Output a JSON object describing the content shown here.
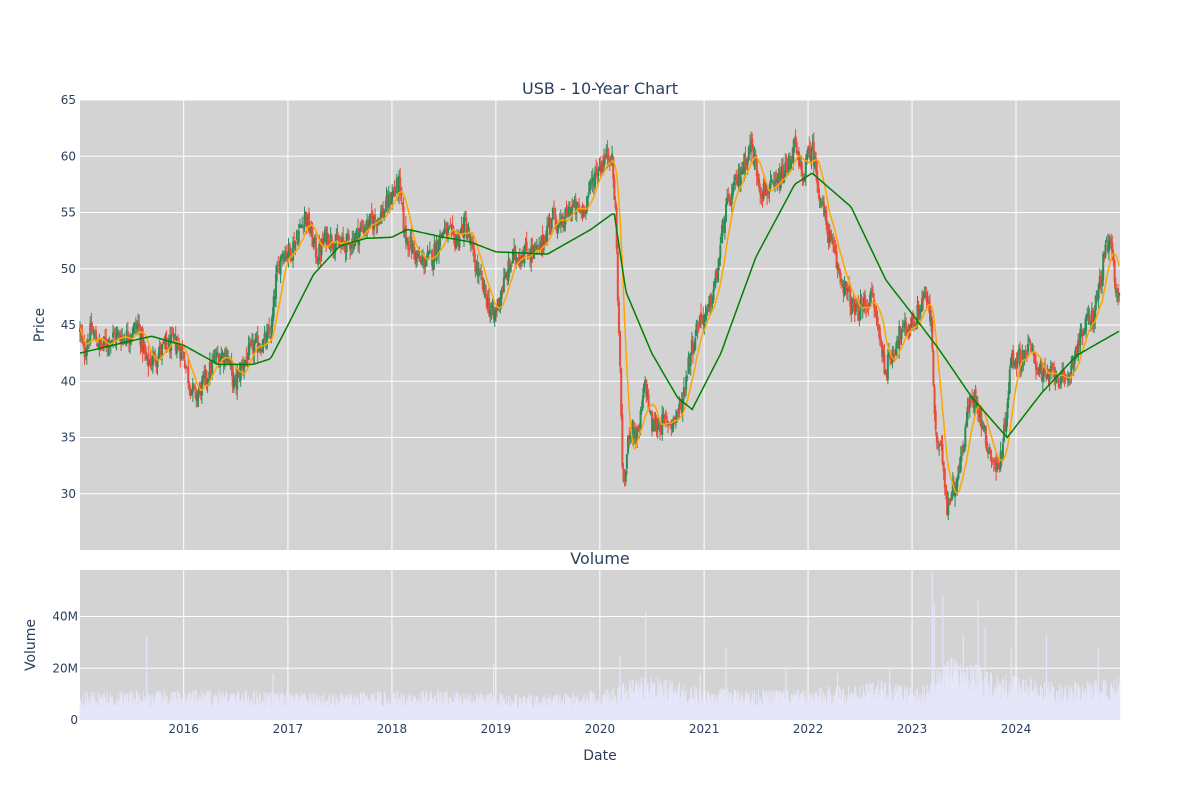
{
  "chart_data": [
    {
      "type": "candlestick",
      "title": "USB - 10-Year Chart",
      "xlabel": "",
      "ylabel": "Price",
      "ylim": [
        25,
        65
      ],
      "yticks": [
        30,
        35,
        40,
        45,
        50,
        55,
        60,
        65
      ],
      "xlim": [
        "2015-01-02",
        "2024-12-31"
      ],
      "grid": true,
      "background": "#d3d3d3",
      "candle_up_color": "#2e8b57",
      "candle_down_color": "#e74c3c",
      "price_path": {
        "dates": [
          "2015-01-02",
          "2015-01-15",
          "2015-02-10",
          "2015-03-15",
          "2015-05-01",
          "2015-06-15",
          "2015-07-25",
          "2015-08-24",
          "2015-09-15",
          "2015-10-25",
          "2015-12-01",
          "2015-12-31",
          "2016-01-20",
          "2016-02-11",
          "2016-03-15",
          "2016-04-20",
          "2016-06-01",
          "2016-06-27",
          "2016-07-25",
          "2016-09-01",
          "2016-10-15",
          "2016-11-04",
          "2016-11-20",
          "2016-12-10",
          "2017-01-10",
          "2017-02-20",
          "2017-03-01",
          "2017-04-15",
          "2017-05-15",
          "2017-07-01",
          "2017-08-15",
          "2017-09-15",
          "2017-10-15",
          "2017-12-01",
          "2018-01-10",
          "2018-01-26",
          "2018-02-15",
          "2018-03-10",
          "2018-04-10",
          "2018-05-20",
          "2018-07-01",
          "2018-08-15",
          "2018-09-15",
          "2018-10-25",
          "2018-12-24",
          "2019-01-20",
          "2019-03-01",
          "2019-04-15",
          "2019-06-01",
          "2019-07-20",
          "2019-08-15",
          "2019-09-20",
          "2019-11-01",
          "2019-12-15",
          "2020-01-10",
          "2020-02-10",
          "2020-02-25",
          "2020-03-15",
          "2020-03-23",
          "2020-04-15",
          "2020-05-15",
          "2020-06-08",
          "2020-07-01",
          "2020-09-15",
          "2020-10-15",
          "2020-11-09",
          "2020-12-15",
          "2021-01-15",
          "2021-02-15",
          "2021-03-15",
          "2021-05-01",
          "2021-06-15",
          "2021-07-20",
          "2021-09-01",
          "2021-10-20",
          "2021-11-15",
          "2021-12-10",
          "2022-01-14",
          "2022-02-15",
          "2022-03-15",
          "2022-04-15",
          "2022-05-15",
          "2022-06-15",
          "2022-08-15",
          "2022-09-30",
          "2022-11-15",
          "2023-01-15",
          "2023-02-15",
          "2023-03-10",
          "2023-03-24",
          "2023-04-20",
          "2023-05-04",
          "2023-06-15",
          "2023-07-20",
          "2023-08-15",
          "2023-09-15",
          "2023-10-25",
          "2023-11-15",
          "2023-12-15",
          "2024-01-15",
          "2024-02-15",
          "2024-04-15",
          "2024-05-15",
          "2024-06-20",
          "2024-08-01",
          "2024-09-01",
          "2024-10-01",
          "2024-11-06",
          "2024-11-25",
          "2024-12-20",
          "2024-12-31"
        ],
        "close": [
          44.5,
          42.5,
          44.5,
          43.0,
          44.0,
          44.0,
          45.0,
          41.5,
          42.0,
          43.0,
          43.5,
          42.5,
          40.0,
          38.5,
          40.0,
          42.0,
          42.5,
          39.5,
          41.5,
          43.0,
          43.5,
          44.5,
          49.0,
          51.5,
          51.5,
          54.0,
          55.0,
          51.0,
          53.0,
          52.0,
          52.5,
          53.5,
          54.0,
          55.0,
          57.0,
          57.5,
          53.0,
          52.0,
          50.5,
          51.0,
          53.5,
          52.5,
          54.0,
          50.0,
          45.5,
          48.0,
          51.0,
          51.5,
          51.5,
          55.0,
          53.5,
          55.5,
          55.0,
          58.5,
          59.5,
          60.5,
          55.0,
          38.0,
          30.0,
          36.0,
          35.0,
          40.0,
          36.0,
          36.5,
          38.0,
          42.0,
          45.5,
          46.0,
          49.5,
          55.0,
          58.0,
          61.0,
          57.0,
          57.0,
          59.0,
          61.0,
          58.0,
          61.0,
          56.0,
          53.0,
          50.0,
          48.0,
          46.0,
          47.5,
          41.0,
          44.0,
          45.5,
          48.0,
          45.0,
          35.0,
          33.0,
          29.0,
          32.0,
          38.0,
          38.5,
          35.0,
          32.0,
          34.0,
          42.0,
          42.0,
          43.0,
          40.0,
          41.0,
          39.5,
          43.0,
          45.0,
          46.0,
          51.0,
          52.5,
          48.0,
          48.0
        ]
      },
      "series": [
        {
          "name": "",
          "color": "#ffa500",
          "role": "short moving average (fast)"
        },
        {
          "name": "",
          "color": "#008000",
          "dates": [
            "2015-01-02",
            "2015-06-15",
            "2015-09-10",
            "2016-01-01",
            "2016-05-01",
            "2016-09-01",
            "2016-11-01",
            "2017-01-01",
            "2017-04-01",
            "2017-07-01",
            "2017-10-01",
            "2018-01-01",
            "2018-02-25",
            "2018-07-01",
            "2018-10-01",
            "2019-01-01",
            "2019-07-01",
            "2019-12-01",
            "2020-02-20",
            "2020-04-01",
            "2020-07-01",
            "2020-10-01",
            "2020-11-20",
            "2021-03-01",
            "2021-07-01",
            "2021-11-15",
            "2022-01-15",
            "2022-06-01",
            "2022-10-01",
            "2023-01-01",
            "2023-04-01",
            "2023-08-01",
            "2023-12-01",
            "2024-04-01",
            "2024-08-01",
            "2024-12-31"
          ],
          "values": [
            42.5,
            43.5,
            44.0,
            43.2,
            41.5,
            41.5,
            42.0,
            45.0,
            49.5,
            52.0,
            52.7,
            52.8,
            53.5,
            52.8,
            52.4,
            51.5,
            51.3,
            53.5,
            55.0,
            48.0,
            42.5,
            38.5,
            37.5,
            42.5,
            51.0,
            57.5,
            58.5,
            55.5,
            49.0,
            46.0,
            43.0,
            38.5,
            35.0,
            39.0,
            42.3,
            44.5
          ]
        }
      ]
    },
    {
      "type": "bar",
      "title": "Volume",
      "xlabel": "Date",
      "ylabel": "Volume",
      "ylim": [
        0,
        58000000
      ],
      "yticks": [
        0,
        20000000,
        40000000
      ],
      "ytick_labels": [
        "0",
        "20M",
        "40M"
      ],
      "xticks": [
        "2016",
        "2017",
        "2018",
        "2019",
        "2020",
        "2021",
        "2022",
        "2023",
        "2024"
      ],
      "bar_color": "#e6e6fa",
      "spikes": [
        {
          "date": "2015-08-24",
          "value": 33000000
        },
        {
          "date": "2016-11-10",
          "value": 18000000
        },
        {
          "date": "2018-12-24",
          "value": 22000000
        },
        {
          "date": "2020-03-12",
          "value": 25000000
        },
        {
          "date": "2020-06-10",
          "value": 42000000
        },
        {
          "date": "2020-12-18",
          "value": 18000000
        },
        {
          "date": "2021-03-19",
          "value": 28000000
        },
        {
          "date": "2021-10-15",
          "value": 20000000
        },
        {
          "date": "2022-04-14",
          "value": 18000000
        },
        {
          "date": "2022-10-14",
          "value": 20000000
        },
        {
          "date": "2023-03-13",
          "value": 57000000
        },
        {
          "date": "2023-03-20",
          "value": 45000000
        },
        {
          "date": "2023-04-19",
          "value": 48000000
        },
        {
          "date": "2023-06-30",
          "value": 33000000
        },
        {
          "date": "2023-08-21",
          "value": 46000000
        },
        {
          "date": "2023-09-15",
          "value": 36000000
        },
        {
          "date": "2023-12-15",
          "value": 28000000
        },
        {
          "date": "2024-04-17",
          "value": 33000000
        },
        {
          "date": "2024-10-16",
          "value": 28000000
        }
      ],
      "baseline_levels": {
        "dates": [
          "2015-01-02",
          "2016-06-01",
          "2017-06-01",
          "2018-06-01",
          "2019-06-01",
          "2020-02-15",
          "2020-06-01",
          "2021-01-01",
          "2022-01-01",
          "2022-09-01",
          "2023-02-01",
          "2023-05-01",
          "2023-12-01",
          "2024-06-01",
          "2024-12-31"
        ],
        "values": [
          8000000,
          8500000,
          7500000,
          8500000,
          7000000,
          9000000,
          13000000,
          9000000,
          8500000,
          11000000,
          9000000,
          18000000,
          13000000,
          10000000,
          12000000
        ]
      }
    }
  ]
}
